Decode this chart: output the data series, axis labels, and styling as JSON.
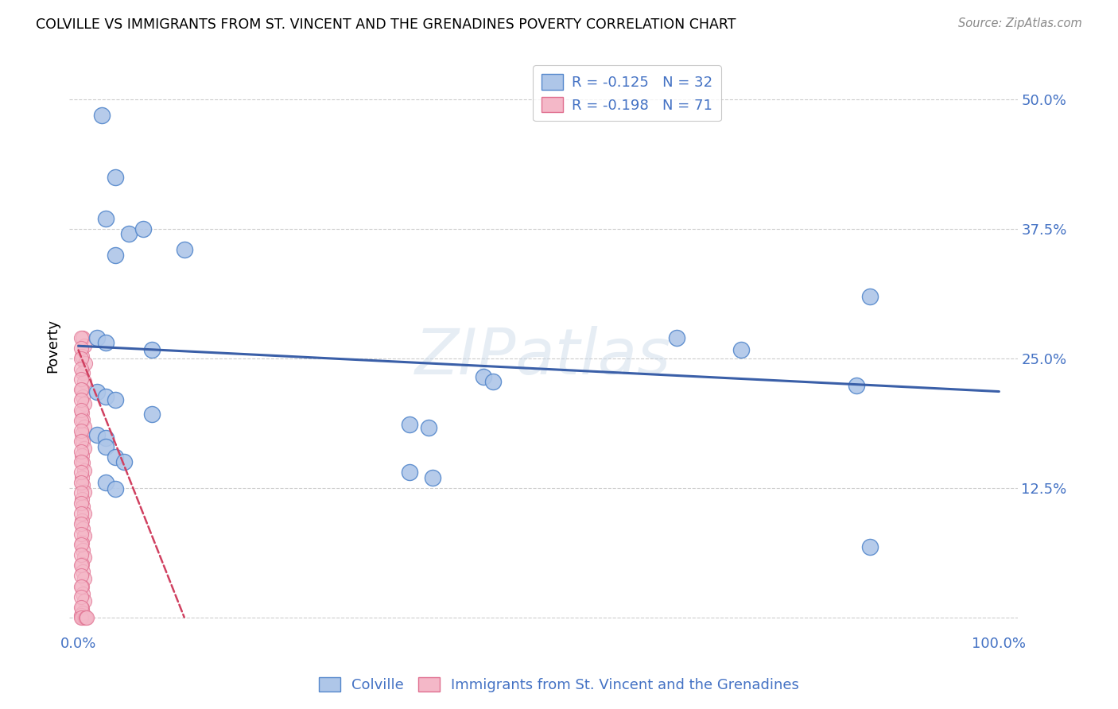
{
  "title": "COLVILLE VS IMMIGRANTS FROM ST. VINCENT AND THE GRENADINES POVERTY CORRELATION CHART",
  "source": "Source: ZipAtlas.com",
  "ylabel_label": "Poverty",
  "colville_color": "#aec6e8",
  "colville_edge": "#5588cc",
  "immigrant_color": "#f4b8c8",
  "immigrant_edge": "#e07090",
  "trendline_colville_color": "#3a5fa8",
  "trendline_immigrant_color": "#d04060",
  "watermark": "ZIPatlas",
  "colville_points": [
    [
      0.025,
      0.485
    ],
    [
      0.04,
      0.425
    ],
    [
      0.03,
      0.385
    ],
    [
      0.055,
      0.37
    ],
    [
      0.04,
      0.35
    ],
    [
      0.07,
      0.375
    ],
    [
      0.115,
      0.355
    ],
    [
      0.02,
      0.27
    ],
    [
      0.03,
      0.265
    ],
    [
      0.08,
      0.258
    ],
    [
      0.44,
      0.232
    ],
    [
      0.65,
      0.27
    ],
    [
      0.72,
      0.258
    ],
    [
      0.86,
      0.31
    ],
    [
      0.845,
      0.224
    ],
    [
      0.02,
      0.218
    ],
    [
      0.03,
      0.213
    ],
    [
      0.04,
      0.21
    ],
    [
      0.08,
      0.196
    ],
    [
      0.45,
      0.228
    ],
    [
      0.36,
      0.186
    ],
    [
      0.38,
      0.183
    ],
    [
      0.02,
      0.176
    ],
    [
      0.03,
      0.173
    ],
    [
      0.03,
      0.165
    ],
    [
      0.04,
      0.155
    ],
    [
      0.05,
      0.15
    ],
    [
      0.36,
      0.14
    ],
    [
      0.385,
      0.135
    ],
    [
      0.03,
      0.13
    ],
    [
      0.04,
      0.124
    ],
    [
      0.86,
      0.068
    ]
  ],
  "immigrant_points": [
    [
      0.005,
      0.27
    ],
    [
      0.006,
      0.262
    ],
    [
      0.004,
      0.252
    ],
    [
      0.007,
      0.245
    ],
    [
      0.005,
      0.236
    ],
    [
      0.006,
      0.228
    ],
    [
      0.004,
      0.22
    ],
    [
      0.005,
      0.213
    ],
    [
      0.006,
      0.206
    ],
    [
      0.004,
      0.198
    ],
    [
      0.005,
      0.191
    ],
    [
      0.006,
      0.184
    ],
    [
      0.004,
      0.177
    ],
    [
      0.005,
      0.17
    ],
    [
      0.006,
      0.163
    ],
    [
      0.004,
      0.156
    ],
    [
      0.005,
      0.149
    ],
    [
      0.006,
      0.142
    ],
    [
      0.004,
      0.135
    ],
    [
      0.005,
      0.128
    ],
    [
      0.006,
      0.121
    ],
    [
      0.004,
      0.114
    ],
    [
      0.005,
      0.107
    ],
    [
      0.006,
      0.1
    ],
    [
      0.004,
      0.093
    ],
    [
      0.005,
      0.086
    ],
    [
      0.006,
      0.079
    ],
    [
      0.004,
      0.072
    ],
    [
      0.005,
      0.065
    ],
    [
      0.006,
      0.058
    ],
    [
      0.004,
      0.051
    ],
    [
      0.005,
      0.044
    ],
    [
      0.006,
      0.037
    ],
    [
      0.004,
      0.03
    ],
    [
      0.005,
      0.023
    ],
    [
      0.006,
      0.016
    ],
    [
      0.004,
      0.009
    ],
    [
      0.005,
      0.004
    ],
    [
      0.003,
      0.002
    ],
    [
      0.004,
      0.0
    ],
    [
      0.005,
      0.0
    ],
    [
      0.006,
      0.0
    ],
    [
      0.007,
      0.0
    ],
    [
      0.003,
      0.27
    ],
    [
      0.003,
      0.26
    ],
    [
      0.003,
      0.25
    ],
    [
      0.003,
      0.24
    ],
    [
      0.003,
      0.23
    ],
    [
      0.003,
      0.22
    ],
    [
      0.003,
      0.21
    ],
    [
      0.003,
      0.2
    ],
    [
      0.003,
      0.19
    ],
    [
      0.003,
      0.18
    ],
    [
      0.003,
      0.17
    ],
    [
      0.003,
      0.16
    ],
    [
      0.003,
      0.15
    ],
    [
      0.003,
      0.14
    ],
    [
      0.003,
      0.13
    ],
    [
      0.003,
      0.12
    ],
    [
      0.003,
      0.11
    ],
    [
      0.003,
      0.1
    ],
    [
      0.003,
      0.09
    ],
    [
      0.003,
      0.08
    ],
    [
      0.003,
      0.07
    ],
    [
      0.003,
      0.06
    ],
    [
      0.003,
      0.05
    ],
    [
      0.003,
      0.04
    ],
    [
      0.003,
      0.03
    ],
    [
      0.003,
      0.02
    ],
    [
      0.003,
      0.01
    ],
    [
      0.003,
      0.0
    ],
    [
      0.008,
      0.0
    ],
    [
      0.009,
      0.0
    ]
  ],
  "colville_trend_x": [
    0.0,
    1.0
  ],
  "colville_trend_y": [
    0.262,
    0.218
  ],
  "immigrant_trend_x": [
    0.0,
    0.115
  ],
  "immigrant_trend_y": [
    0.258,
    0.0
  ],
  "xlim": [
    -0.01,
    1.02
  ],
  "ylim": [
    -0.015,
    0.54
  ],
  "yticks": [
    0.0,
    0.125,
    0.25,
    0.375,
    0.5
  ],
  "yticklabels": [
    "",
    "12.5%",
    "25.0%",
    "37.5%",
    "50.0%"
  ],
  "xticks": [
    0.0,
    0.2,
    0.4,
    0.6,
    0.8,
    1.0
  ],
  "xticklabels": [
    "0.0%",
    "",
    "",
    "",
    "",
    "100.0%"
  ]
}
